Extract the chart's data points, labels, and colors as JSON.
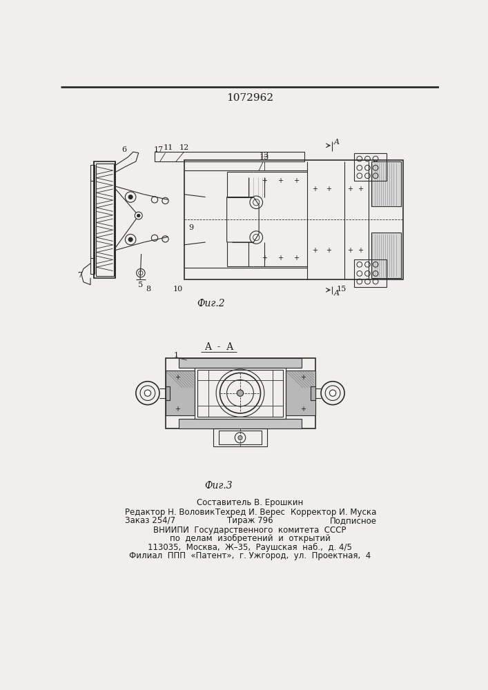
{
  "title": "1072962",
  "bg_color": "#f0efeb",
  "fig2_caption": "Фиг.2",
  "fig3_caption": "Фиг.3",
  "fig3_title": "A  -  A",
  "line_color": "#2a2a2a",
  "label_color": "#1a1a1a",
  "footer_col1_line1": "Редактор Н. Воловик",
  "footer_col2_line1": "Техред И. Верес",
  "footer_col3_line1": "Корректор И. Муска",
  "footer_col1_line2": "Заказ 254/7",
  "footer_col2_line2": "Тираж 796",
  "footer_col3_line2": "Подписное",
  "footer_center_line0": "Составитель В. Ерошкин",
  "footer_center_lines": [
    "ВНИИПИ  Государственного  комитета  СССР",
    "по  делам  изобретений  и  открытий",
    "113035,  Москва,  Ж–35,  Раушская  наб.,  д. 4/5",
    "Филиал  ППП  «Патент»,  г. Ужгород,  ул.  Проектная,  4"
  ]
}
